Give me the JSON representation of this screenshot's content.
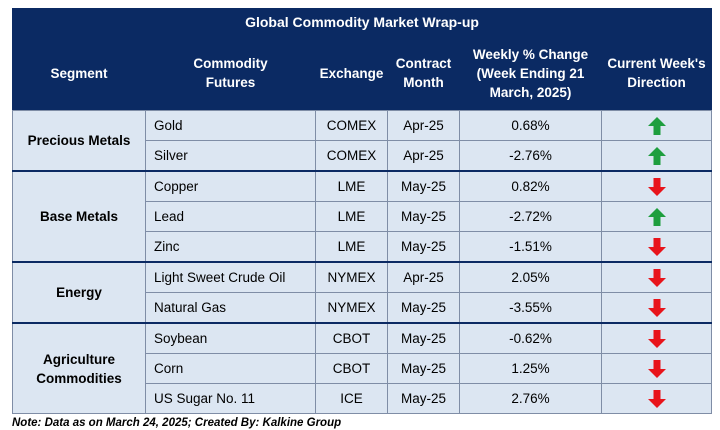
{
  "title": "Global Commodity Market Wrap-up",
  "headers": {
    "segment": "Segment",
    "commodity_line1": "Commodity",
    "commodity_line2": "Futures",
    "exchange": "Exchange",
    "contract_line1": "Contract",
    "contract_line2": "Month",
    "change_line1": "Weekly % Change",
    "change_line2": "(Week Ending 21",
    "change_line3": "March, 2025)",
    "direction_line1": "Current Week's",
    "direction_line2": "Direction"
  },
  "groups": [
    {
      "segment_line1": "Precious Metals",
      "segment_line2": "",
      "rows": [
        {
          "commodity": "Gold",
          "exchange": "COMEX",
          "month": "Apr-25",
          "change": "0.68%",
          "direction": "up"
        },
        {
          "commodity": "Silver",
          "exchange": "COMEX",
          "month": "Apr-25",
          "change": "-2.76%",
          "direction": "up"
        }
      ]
    },
    {
      "segment_line1": "Base Metals",
      "segment_line2": "",
      "rows": [
        {
          "commodity": "Copper",
          "exchange": "LME",
          "month": "May-25",
          "change": "0.82%",
          "direction": "down"
        },
        {
          "commodity": "Lead",
          "exchange": "LME",
          "month": "May-25",
          "change": "-2.72%",
          "direction": "up"
        },
        {
          "commodity": "Zinc",
          "exchange": "LME",
          "month": "May-25",
          "change": "-1.51%",
          "direction": "down"
        }
      ]
    },
    {
      "segment_line1": "Energy",
      "segment_line2": "",
      "rows": [
        {
          "commodity": "Light Sweet Crude Oil",
          "exchange": "NYMEX",
          "month": "Apr-25",
          "change": "2.05%",
          "direction": "down"
        },
        {
          "commodity": "Natural Gas",
          "exchange": "NYMEX",
          "month": "May-25",
          "change": "-3.55%",
          "direction": "down"
        }
      ]
    },
    {
      "segment_line1": "Agriculture",
      "segment_line2": "Commodities",
      "rows": [
        {
          "commodity": "Soybean",
          "exchange": "CBOT",
          "month": "May-25",
          "change": "-0.62%",
          "direction": "down"
        },
        {
          "commodity": "Corn",
          "exchange": "CBOT",
          "month": "May-25",
          "change": "1.25%",
          "direction": "down"
        },
        {
          "commodity": "US Sugar No. 11",
          "exchange": "ICE",
          "month": "May-25",
          "change": "2.76%",
          "direction": "down"
        }
      ]
    }
  ],
  "colors": {
    "header_bg": "#0b2a63",
    "row_bg": "#dce6f2",
    "up_arrow": "#1e9e3e",
    "down_arrow": "#e8141b"
  },
  "icons": {
    "up": "up-arrow-icon",
    "down": "down-arrow-icon"
  },
  "note": "Note: Data as on March 24, 2025; Created By: Kalkine Group"
}
